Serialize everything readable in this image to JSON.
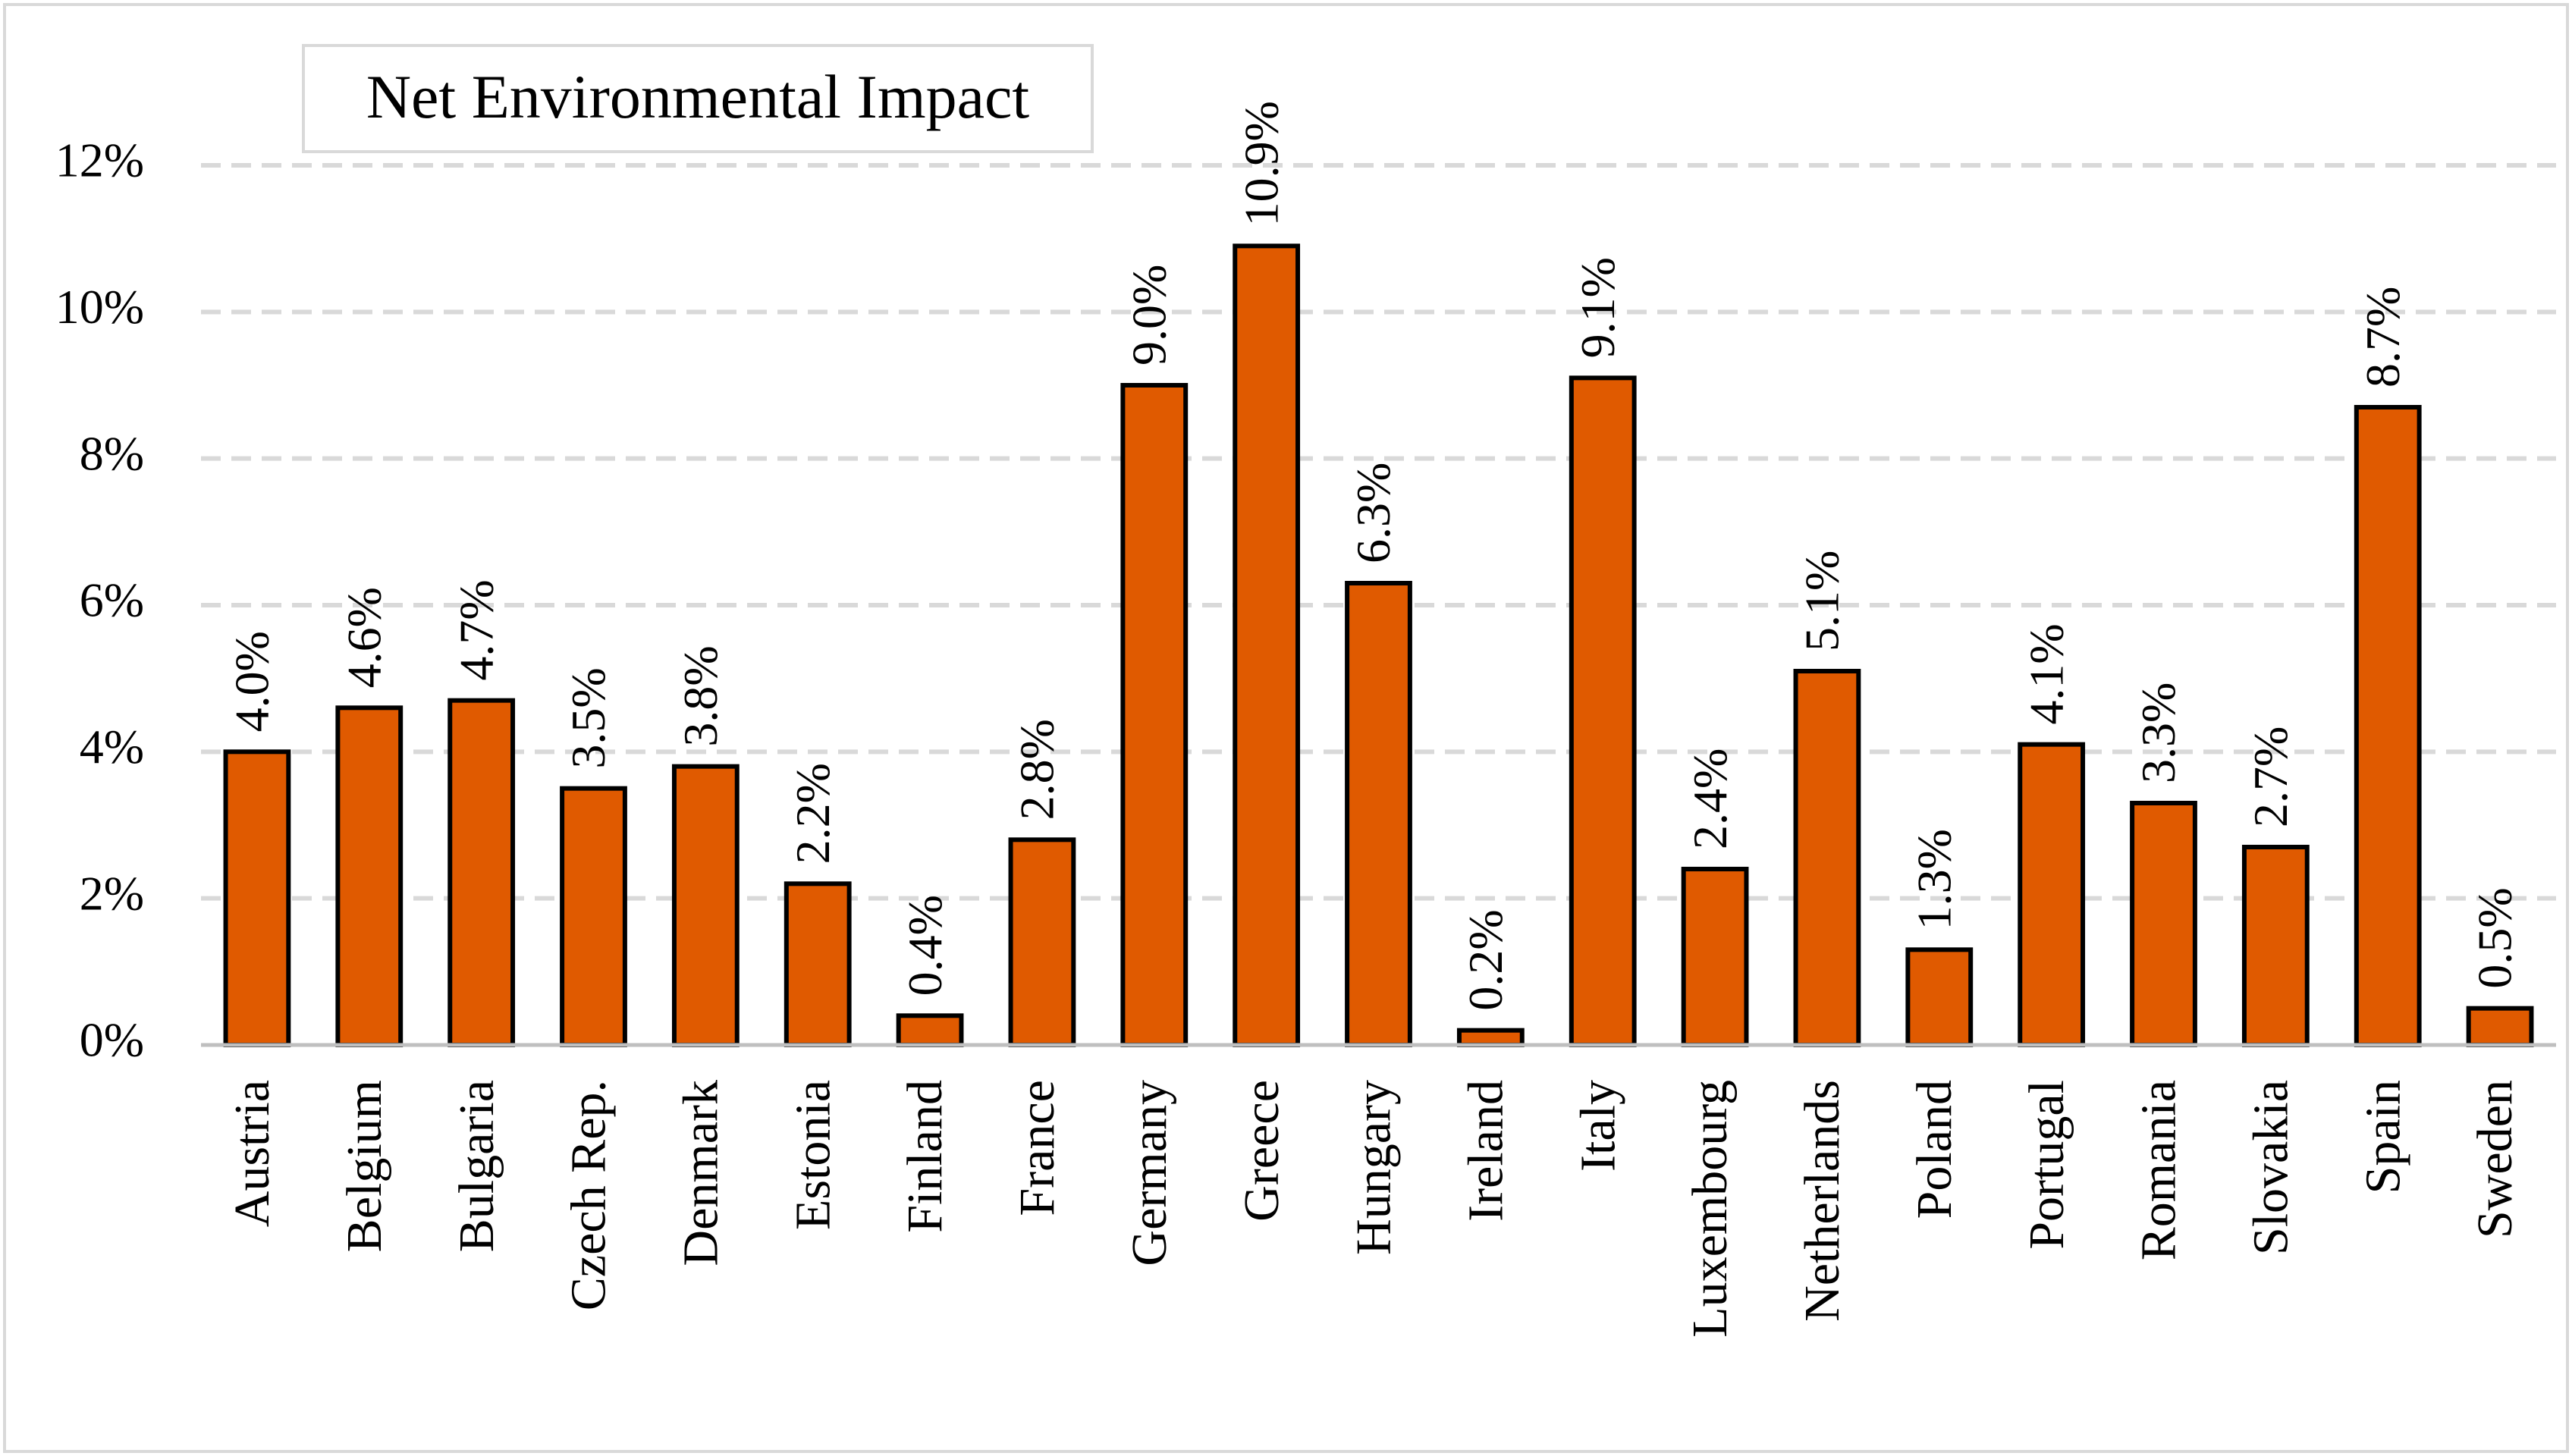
{
  "chart_data": {
    "type": "bar",
    "title": "Net Environmental Impact",
    "legend": [
      "Net Environmental Impact"
    ],
    "legend_position": "top-left",
    "xlabel": "",
    "ylabel": "",
    "ylim": [
      0,
      12
    ],
    "yticks": [
      0,
      2,
      4,
      6,
      8,
      10,
      12
    ],
    "ytick_labels": [
      "0%",
      "2%",
      "4%",
      "6%",
      "8%",
      "10%",
      "12%"
    ],
    "grid": true,
    "bar_color": "#e05a00",
    "categories": [
      "Austria",
      "Belgium",
      "Bulgaria",
      "Czech Rep.",
      "Denmark",
      "Estonia",
      "Finland",
      "France",
      "Germany",
      "Greece",
      "Hungary",
      "Ireland",
      "Italy",
      "Luxembourg",
      "Netherlands",
      "Poland",
      "Portugal",
      "Romania",
      "Slovakia",
      "Spain",
      "Sweden"
    ],
    "values": [
      4.0,
      4.6,
      4.7,
      3.5,
      3.8,
      2.2,
      0.4,
      2.8,
      9.0,
      10.9,
      6.3,
      0.2,
      9.1,
      2.4,
      5.1,
      1.3,
      4.1,
      3.3,
      2.7,
      8.7,
      0.5
    ],
    "data_labels": [
      "4.0%",
      "4.6%",
      "4.7%",
      "3.5%",
      "3.8%",
      "2.2%",
      "0.4%",
      "2.8%",
      "9.0%",
      "10.9%",
      "6.3%",
      "0.2%",
      "9.1%",
      "2.4%",
      "5.1%",
      "1.3%",
      "4.1%",
      "3.3%",
      "2.7%",
      "8.7%",
      "0.5%"
    ]
  }
}
